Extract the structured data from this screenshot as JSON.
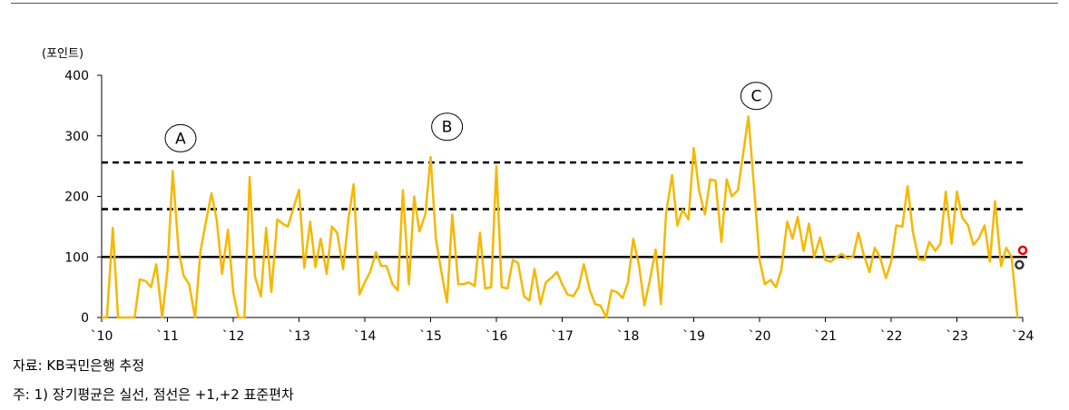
{
  "chart_data": {
    "type": "line",
    "ylabel": "(포인트)",
    "ylim": [
      0,
      400
    ],
    "yticks": [
      "0",
      "100",
      "200",
      "300",
      "400"
    ],
    "xlim": [
      2010,
      2024
    ],
    "xticks": [
      "`10",
      "`11",
      "`12",
      "`13",
      "`14",
      "`15",
      "`16",
      "`17",
      "`18",
      "`19",
      "`20",
      "`21",
      "`22",
      "`23",
      "`24"
    ],
    "series": [
      {
        "color": "#F5B800",
        "x": [
          2010.0,
          2010.08,
          2010.17,
          2010.25,
          2010.33,
          2010.42,
          2010.5,
          2010.58,
          2010.67,
          2010.75,
          2010.83,
          2010.92,
          2011.0,
          2011.08,
          2011.17,
          2011.25,
          2011.33,
          2011.42,
          2011.5,
          2011.58,
          2011.67,
          2011.75,
          2011.83,
          2011.92,
          2012.0,
          2012.08,
          2012.17,
          2012.25,
          2012.33,
          2012.42,
          2012.5,
          2012.58,
          2012.67,
          2012.75,
          2012.83,
          2012.92,
          2013.0,
          2013.08,
          2013.17,
          2013.25,
          2013.33,
          2013.42,
          2013.5,
          2013.58,
          2013.67,
          2013.75,
          2013.83,
          2013.92,
          2014.0,
          2014.08,
          2014.17,
          2014.25,
          2014.33,
          2014.42,
          2014.5,
          2014.58,
          2014.67,
          2014.75,
          2014.83,
          2014.92,
          2015.0,
          2015.08,
          2015.17,
          2015.25,
          2015.33,
          2015.42,
          2015.5,
          2015.58,
          2015.67,
          2015.75,
          2015.83,
          2015.92,
          2016.0,
          2016.08,
          2016.17,
          2016.25,
          2016.33,
          2016.42,
          2016.5,
          2016.58,
          2016.67,
          2016.75,
          2016.83,
          2016.92,
          2017.0,
          2017.08,
          2017.17,
          2017.25,
          2017.33,
          2017.42,
          2017.5,
          2017.58,
          2017.67,
          2017.75,
          2017.83,
          2017.92,
          2018.0,
          2018.08,
          2018.17,
          2018.25,
          2018.33,
          2018.42,
          2018.5,
          2018.58,
          2018.67,
          2018.75,
          2018.83,
          2018.92,
          2019.0,
          2019.08,
          2019.17,
          2019.25,
          2019.33,
          2019.42,
          2019.5,
          2019.58,
          2019.67,
          2019.75,
          2019.83,
          2019.92,
          2020.0,
          2020.08,
          2020.17,
          2020.25,
          2020.33,
          2020.42,
          2020.5,
          2020.58,
          2020.67,
          2020.75,
          2020.83,
          2020.92,
          2021.0,
          2021.08,
          2021.17,
          2021.25,
          2021.33,
          2021.42,
          2021.5,
          2021.58,
          2021.67,
          2021.75,
          2021.83,
          2021.92,
          2022.0,
          2022.08,
          2022.17,
          2022.25,
          2022.33,
          2022.42,
          2022.5,
          2022.58,
          2022.67,
          2022.75,
          2022.83,
          2022.92,
          2023.0,
          2023.08,
          2023.17,
          2023.25,
          2023.33,
          2023.42,
          2023.5,
          2023.58,
          2023.67,
          2023.75,
          2023.83,
          2023.92
        ],
        "y": [
          0,
          0,
          148,
          0,
          0,
          0,
          0,
          63,
          60,
          50,
          88,
          0,
          78,
          242,
          110,
          68,
          55,
          0,
          108,
          155,
          205,
          160,
          72,
          145,
          42,
          0,
          0,
          232,
          68,
          35,
          148,
          42,
          162,
          155,
          150,
          182,
          211,
          82,
          158,
          83,
          130,
          72,
          150,
          140,
          80,
          162,
          220,
          38,
          58,
          75,
          108,
          85,
          85,
          55,
          45,
          210,
          55,
          200,
          142,
          170,
          265,
          130,
          72,
          25,
          170,
          55,
          55,
          58,
          52,
          140,
          48,
          50,
          250,
          50,
          48,
          95,
          90,
          35,
          28,
          80,
          22,
          58,
          65,
          75,
          55,
          38,
          35,
          50,
          88,
          45,
          22,
          20,
          0,
          45,
          42,
          32,
          58,
          130,
          85,
          20,
          60,
          112,
          22,
          172,
          235,
          152,
          178,
          162,
          280,
          210,
          170,
          228,
          226,
          125,
          228,
          200,
          210,
          270,
          332,
          210,
          95,
          55,
          62,
          50,
          78,
          158,
          130,
          166,
          110,
          155,
          100,
          132,
          95,
          92,
          100,
          105,
          98,
          100,
          140,
          105,
          75,
          115,
          100,
          65,
          92,
          152,
          150,
          217,
          142,
          96,
          95,
          125,
          110,
          122,
          208,
          122,
          208,
          165,
          152,
          120,
          130,
          152,
          92,
          192,
          85,
          115,
          100,
          0
        ]
      }
    ],
    "reference_lines": [
      {
        "style": "solid",
        "value": 100
      },
      {
        "style": "dashed",
        "value": 179
      },
      {
        "style": "dashed",
        "value": 256
      }
    ],
    "end_markers": [
      {
        "color": "#E60012",
        "x": 2024.0,
        "y": 111
      },
      {
        "color": "#333333",
        "x": 2023.95,
        "y": 87
      }
    ],
    "annotations": [
      {
        "label": "A",
        "x": 2011.2,
        "y": 296
      },
      {
        "label": "B",
        "x": 2015.25,
        "y": 315
      },
      {
        "label": "C",
        "x": 2019.95,
        "y": 366
      }
    ]
  },
  "source_note": "자료: KB국민은행 추정",
  "footnote": "주: 1) 장기평균은 실선, 점선은 +1,+2 표준편차"
}
